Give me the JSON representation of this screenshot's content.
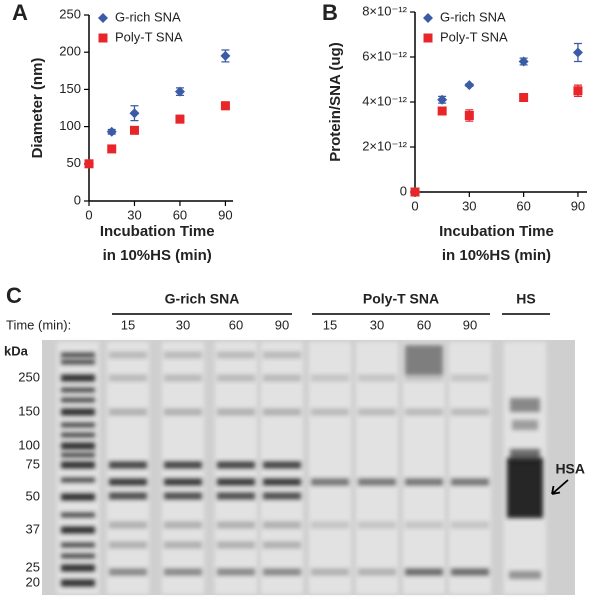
{
  "chart_data": [
    {
      "type": "scatter",
      "panel_label": "A",
      "y_label": "Diameter (nm)",
      "x_label": [
        "Incubation Time",
        "in 10%HS (min)"
      ],
      "x": [
        0,
        15,
        30,
        60,
        90
      ],
      "xlim": [
        0,
        95
      ],
      "xticks": [
        0,
        30,
        60,
        90
      ],
      "ylim": [
        0,
        250
      ],
      "yticks": [
        0,
        50,
        100,
        150,
        200,
        250
      ],
      "grid": false,
      "series": [
        {
          "name": "G-rich SNA",
          "color": "#3b5ba5",
          "marker": "diamond",
          "values": [
            50,
            93,
            118,
            147,
            195
          ],
          "errors": [
            3,
            3,
            10,
            5,
            8
          ]
        },
        {
          "name": "Poly-T SNA",
          "color": "#e8262a",
          "marker": "square",
          "values": [
            50,
            70,
            95,
            110,
            128
          ],
          "errors": [
            3,
            3,
            3,
            5,
            5
          ]
        }
      ]
    },
    {
      "type": "scatter",
      "panel_label": "B",
      "y_label": "Protein/SNA (ug)",
      "x_label": [
        "Incubation Time",
        "in 10%HS (min)"
      ],
      "x": [
        0,
        15,
        30,
        60,
        90
      ],
      "xlim": [
        0,
        95
      ],
      "xticks": [
        0,
        30,
        60,
        90
      ],
      "ylim": [
        0,
        8e-12
      ],
      "yticks": [
        0,
        {
          "value": 2e-12,
          "label": "2×10⁻¹²"
        },
        {
          "value": 4e-12,
          "label": "4×10⁻¹²"
        },
        {
          "value": 6e-12,
          "label": "6×10⁻¹²"
        },
        {
          "value": 8e-12,
          "label": "8×10⁻¹²"
        }
      ],
      "grid": false,
      "series": [
        {
          "name": "G-rich SNA",
          "color": "#3b5ba5",
          "marker": "diamond",
          "values": [
            0,
            4.1e-12,
            4.75e-12,
            5.8e-12,
            6.2e-12
          ],
          "errors": [
            0,
            1.5e-13,
            5e-14,
            1.5e-13,
            4e-13
          ]
        },
        {
          "name": "Poly-T SNA",
          "color": "#e8262a",
          "marker": "square",
          "values": [
            0,
            3.6e-12,
            3.4e-12,
            4.2e-12,
            4.5e-12
          ],
          "errors": [
            0,
            1.5e-13,
            2.5e-13,
            5e-14,
            2.5e-13
          ]
        }
      ]
    }
  ],
  "gel": {
    "panel_label": "C",
    "time_label": "Time (min):",
    "unit_label": "kDa",
    "arrow_label": "HSA",
    "groups": [
      {
        "label": "G-rich SNA",
        "times": [
          15,
          30,
          60,
          90
        ]
      },
      {
        "label": "Poly-T SNA",
        "times": [
          15,
          30,
          60,
          90
        ]
      },
      {
        "label": "HS"
      }
    ],
    "ladder": [
      250,
      150,
      100,
      75,
      50,
      37,
      25,
      20
    ]
  }
}
